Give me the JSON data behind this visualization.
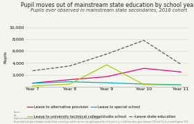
{
  "title": "Pupil moves out of mainstream state education by school year",
  "subtitle": "Pupils ever observed in mainstream state secondaries, 2018 cohort",
  "ylabel": "Pupils",
  "ylim": [
    0,
    10000
  ],
  "yticks": [
    2000,
    4000,
    6000,
    8000,
    10000
  ],
  "xtick_labels": [
    "Year 7",
    "Year 8",
    "Year 9",
    "Year 10",
    "Year 11"
  ],
  "series": [
    {
      "label": "Leave to alternative provision",
      "color": "#e8006e",
      "linestyle": "-",
      "linewidth": 0.9,
      "values": [
        620,
        1200,
        1700,
        3100,
        2500
      ]
    },
    {
      "label": "Leave to special school",
      "color": "#00aacc",
      "linestyle": "-",
      "linewidth": 0.9,
      "values": [
        600,
        850,
        680,
        460,
        350
      ]
    },
    {
      "label": "Leave to university technical college/studio school",
      "color": "#aacc00",
      "linestyle": "-",
      "linewidth": 0.9,
      "values": [
        150,
        450,
        3700,
        380,
        280
      ]
    },
    {
      "label": "Leave state education",
      "color": "#555555",
      "linestyle": "--",
      "linewidth": 0.9,
      "values": [
        2700,
        3500,
        5500,
        7800,
        3800
      ]
    }
  ],
  "background_color": "#f5f5f0",
  "title_fontsize": 5.8,
  "subtitle_fontsize": 4.8,
  "ylabel_fontsize": 4.5,
  "legend_fontsize": 3.8,
  "tick_fontsize": 4.5,
  "source_text": "Source:\nDfE\nPupils are assessed and classified by their first removal out of mainstream state education.\nMoves that take place between rounds of one school year and the last are not aged against the child year (e.g. a child that takes place between Y10 and Y11 is recorded against Y10)."
}
